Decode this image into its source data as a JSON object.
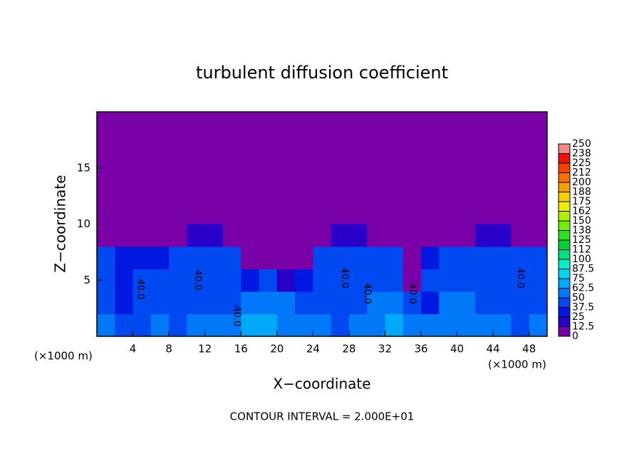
{
  "chart_data": {
    "type": "contour",
    "title": "turbulent diffusion coefficient",
    "xlabel": "X−coordinate",
    "ylabel": "Z−coordinate",
    "xunit": "(×1000 m)",
    "yunit": "(×1000 m)",
    "note": "CONTOUR INTERVAL = 2.000E+01",
    "xlim": [
      0,
      50
    ],
    "ylim": [
      0,
      20
    ],
    "xticks": [
      4,
      8,
      12,
      16,
      20,
      24,
      28,
      32,
      36,
      40,
      44,
      48
    ],
    "yticks": [
      5,
      10,
      15
    ],
    "x": [
      1,
      3,
      5,
      7,
      9,
      11,
      13,
      15,
      17,
      19,
      21,
      23,
      25,
      27,
      29,
      31,
      33,
      35,
      37,
      39,
      41,
      43,
      45,
      47,
      49
    ],
    "z": [
      1,
      3,
      5,
      7,
      9
    ],
    "values": [
      [
        55,
        45,
        40,
        50,
        45,
        50,
        60,
        55,
        65,
        70,
        62,
        55,
        60,
        45,
        50,
        60,
        65,
        55,
        60,
        50,
        62,
        55,
        50,
        45,
        55
      ],
      [
        40,
        30,
        45,
        42,
        40,
        42,
        48,
        40,
        55,
        62,
        58,
        40,
        40,
        42,
        45,
        50,
        52,
        45,
        30,
        55,
        50,
        40,
        45,
        42,
        40
      ],
      [
        45,
        35,
        40,
        42,
        40,
        42,
        45,
        40,
        30,
        45,
        20,
        25,
        40,
        42,
        42,
        45,
        40,
        12,
        40,
        45,
        42,
        40,
        42,
        45,
        40
      ],
      [
        40,
        30,
        30,
        30,
        40,
        42,
        42,
        45,
        10,
        5,
        3,
        5,
        40,
        45,
        42,
        42,
        40,
        5,
        30,
        40,
        45,
        42,
        42,
        40,
        45
      ],
      [
        0,
        0,
        0,
        0,
        0,
        20,
        20,
        0,
        0,
        0,
        0,
        0,
        0,
        20,
        20,
        0,
        0,
        0,
        0,
        0,
        0,
        20,
        20,
        0,
        0
      ]
    ],
    "contour_labels": [
      {
        "text": "40.0",
        "x": 4.8,
        "z": 4.2
      },
      {
        "text": "40.0",
        "x": 11.2,
        "z": 5.0
      },
      {
        "text": "40.0",
        "x": 15.5,
        "z": 1.8
      },
      {
        "text": "40.0",
        "x": 27.5,
        "z": 5.2
      },
      {
        "text": "40.0",
        "x": 30.0,
        "z": 3.8
      },
      {
        "text": "40.0",
        "x": 35.0,
        "z": 3.8
      },
      {
        "text": "40.0",
        "x": 47.0,
        "z": 5.2
      }
    ],
    "clim": [
      0,
      250
    ],
    "colorbar_ticks": [
      0,
      12.5,
      25,
      37.5,
      50,
      62.5,
      75,
      87.5,
      100,
      {
        "value": 112.5,
        "label": "112"
      },
      125,
      {
        "value": 137.5,
        "label": "138"
      },
      150,
      {
        "value": 162.5,
        "label": "162"
      },
      175,
      {
        "value": 187.5,
        "label": "188"
      },
      200,
      {
        "value": 212.5,
        "label": "212"
      },
      225,
      {
        "value": 237.5,
        "label": "238"
      },
      250
    ],
    "colors": [
      "#7a00a8",
      "#2800c8",
      "#0018e0",
      "#0048f0",
      "#0078f8",
      "#00a8f8",
      "#00d4f0",
      "#00f0c8",
      "#00e080",
      "#00d040",
      "#30e020",
      "#70f000",
      "#b0f000",
      "#e8f000",
      "#f8d000",
      "#f8a000",
      "#f87000",
      "#f84000",
      "#f01010",
      "#f08888"
    ]
  }
}
